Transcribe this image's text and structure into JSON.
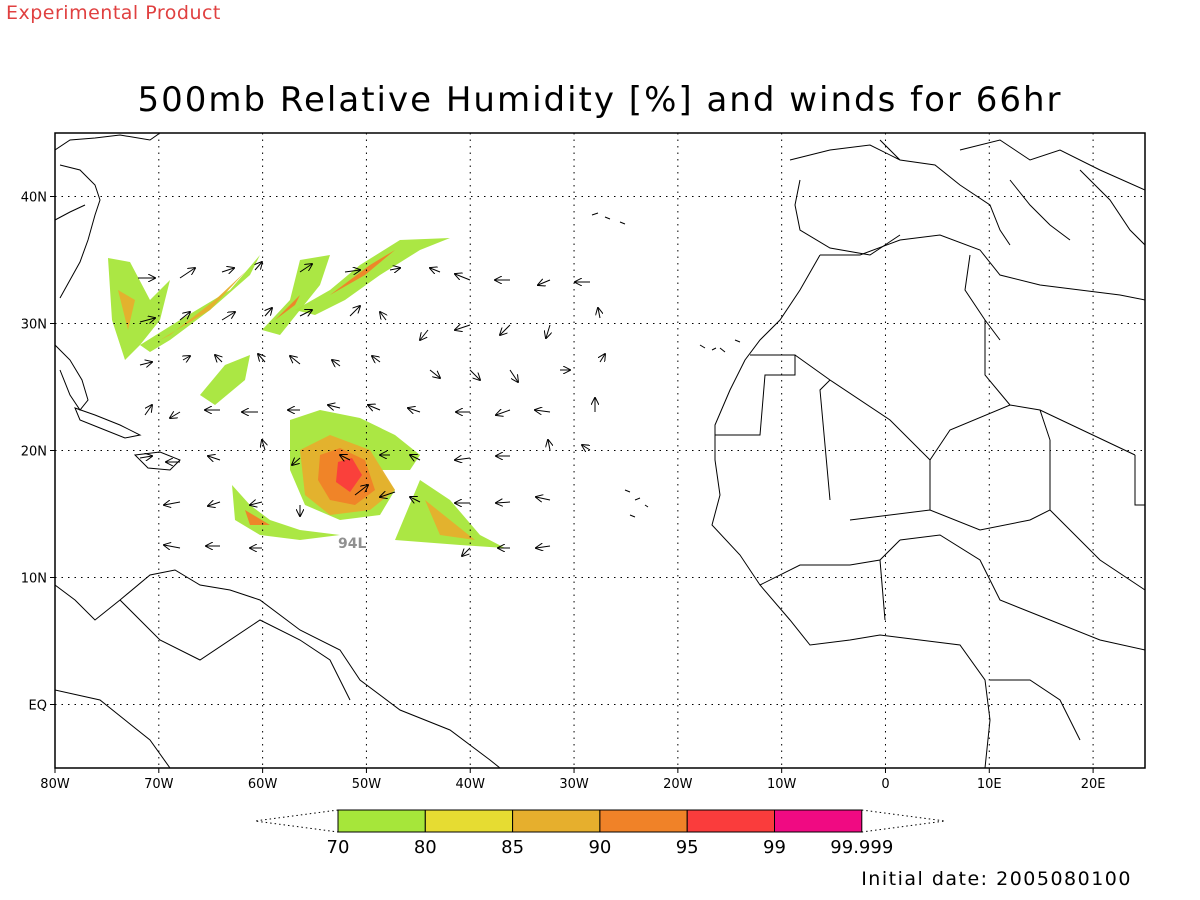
{
  "header": {
    "product_note": "Experimental Product",
    "title": "500mb Relative Humidity [%] and winds for 66hr"
  },
  "map": {
    "projection": "cylindrical-equidistant",
    "lon_range": [
      -80,
      25
    ],
    "lat_range": [
      -5,
      45
    ],
    "grid": "dotted",
    "lon_ticks": [
      {
        "value": -80,
        "label": "80W"
      },
      {
        "value": -70,
        "label": "70W"
      },
      {
        "value": -60,
        "label": "60W"
      },
      {
        "value": -50,
        "label": "50W"
      },
      {
        "value": -40,
        "label": "40W"
      },
      {
        "value": -30,
        "label": "30W"
      },
      {
        "value": -20,
        "label": "20W"
      },
      {
        "value": -10,
        "label": "10W"
      },
      {
        "value": 0,
        "label": "0"
      },
      {
        "value": 10,
        "label": "10E"
      },
      {
        "value": 20,
        "label": "20E"
      }
    ],
    "lat_ticks": [
      {
        "value": 40,
        "label": "40N"
      },
      {
        "value": 30,
        "label": "30N"
      },
      {
        "value": 20,
        "label": "20N"
      },
      {
        "value": 10,
        "label": "10N"
      },
      {
        "value": 0,
        "label": "EQ"
      }
    ],
    "storm_label": "94L"
  },
  "colorbar": {
    "bins": [
      {
        "from": 70,
        "to": 80,
        "color": "#a6e63a"
      },
      {
        "from": 80,
        "to": 85,
        "color": "#e6dc32"
      },
      {
        "from": 85,
        "to": 90,
        "color": "#e6af2d"
      },
      {
        "from": 90,
        "to": 95,
        "color": "#f08228"
      },
      {
        "from": 95,
        "to": 99,
        "color": "#fa3c3c"
      },
      {
        "from": 99,
        "to": 99.999,
        "color": "#f00a82"
      }
    ],
    "labels": [
      "70",
      "80",
      "85",
      "90",
      "95",
      "99",
      "99.999"
    ]
  },
  "footer": {
    "initial_date": "Initial date: 2005080100"
  }
}
